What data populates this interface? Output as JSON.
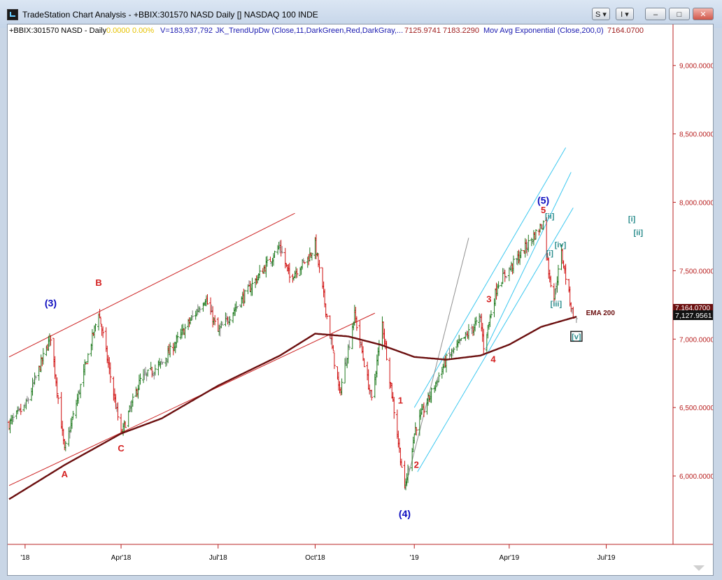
{
  "window": {
    "title": "TradeStation Chart Analysis - +BBIX:301570 NASD Daily [] NASDAQ 100 INDE",
    "buttons": [
      "S",
      "I",
      "–",
      "□",
      "✕"
    ]
  },
  "status": {
    "symbol": "+BBIX:301570 NASD - Daily",
    "change": "0.0000",
    "change_pct": "0.00%",
    "volume": "V=183,937,792",
    "indicator": "JK_TrendUpDw (Close,11,DarkGreen,Red,DarkGray,...",
    "ind_val1": "7125.9741",
    "ind_val2": "7183.2290",
    "ma_label": "Mov Avg Exponential (Close,200,0)",
    "ma_val": "7164.0700"
  },
  "last_price_label": "7,127.9561",
  "ema_price_label": "7,164.0700",
  "colors": {
    "up": "#1f7a1f",
    "down": "#d01010",
    "neutral": "#888888",
    "ema": "#6b0f0f",
    "channel_red": "#cc2222",
    "channel_cyan": "#3cc8f0",
    "wave_blue": "#0b0bbf",
    "wave_red": "#d42020",
    "wave_teal": "#2a8c8c",
    "price_axis": "#b82020"
  },
  "chart_data": {
    "type": "bar",
    "subtype": "ohlc",
    "x_axis": {
      "type": "date",
      "start": "2017-12-18",
      "end": "2019-08-30",
      "ticks": [
        {
          "date": "2018-01-02",
          "label": "'18"
        },
        {
          "date": "2018-04-02",
          "label": "Apr'18"
        },
        {
          "date": "2018-07-02",
          "label": "Jul'18"
        },
        {
          "date": "2018-10-01",
          "label": "Oct'18"
        },
        {
          "date": "2019-01-02",
          "label": "'19"
        },
        {
          "date": "2019-04-01",
          "label": "Apr'19"
        },
        {
          "date": "2019-07-01",
          "label": "Jul'19"
        }
      ]
    },
    "y_axis": {
      "range": [
        5500,
        9300
      ],
      "ticks": [
        6000,
        6500,
        7000,
        7500,
        8000,
        8500,
        9000
      ],
      "tick_labels": [
        "6,000.0000",
        "6,500.0000",
        "7,000.0000",
        "7,500.0000",
        "8,000.0000",
        "8,500.0000",
        "9,000.0000"
      ]
    },
    "price_path": [
      [
        "2017-12-18",
        6380
      ],
      [
        "2018-01-03",
        6520
      ],
      [
        "2018-01-26",
        7020
      ],
      [
        "2018-02-08",
        6180
      ],
      [
        "2018-03-12",
        7200
      ],
      [
        "2018-04-02",
        6300
      ],
      [
        "2018-04-20",
        6700
      ],
      [
        "2018-05-10",
        6820
      ],
      [
        "2018-06-20",
        7300
      ],
      [
        "2018-07-02",
        7050
      ],
      [
        "2018-08-29",
        7680
      ],
      [
        "2018-09-07",
        7450
      ],
      [
        "2018-09-25",
        7600
      ],
      [
        "2018-10-01",
        7690
      ],
      [
        "2018-10-24",
        6600
      ],
      [
        "2018-11-07",
        7180
      ],
      [
        "2018-11-23",
        6550
      ],
      [
        "2018-12-03",
        7120
      ],
      [
        "2018-12-24",
        5900
      ],
      [
        "2019-01-03",
        6350
      ],
      [
        "2019-02-01",
        6850
      ],
      [
        "2019-03-05",
        7150
      ],
      [
        "2019-03-08",
        6950
      ],
      [
        "2019-03-21",
        7400
      ],
      [
        "2019-04-10",
        7600
      ],
      [
        "2019-05-03",
        7850
      ],
      [
        "2019-05-08",
        7500
      ],
      [
        "2019-05-13",
        7300
      ],
      [
        "2019-05-20",
        7630
      ],
      [
        "2019-05-30",
        7200
      ],
      [
        "2019-06-03",
        7128
      ]
    ],
    "ema200": [
      [
        "2017-12-18",
        5830
      ],
      [
        "2018-02-08",
        6080
      ],
      [
        "2018-04-02",
        6310
      ],
      [
        "2018-05-10",
        6420
      ],
      [
        "2018-07-02",
        6660
      ],
      [
        "2018-08-29",
        6880
      ],
      [
        "2018-10-01",
        7040
      ],
      [
        "2018-11-01",
        7020
      ],
      [
        "2018-12-01",
        6960
      ],
      [
        "2019-01-02",
        6870
      ],
      [
        "2019-02-01",
        6850
      ],
      [
        "2019-03-05",
        6880
      ],
      [
        "2019-04-01",
        6960
      ],
      [
        "2019-05-01",
        7090
      ],
      [
        "2019-06-03",
        7164
      ]
    ],
    "series": [
      {
        "name": "Mov Avg Exponential (Close,200,0)",
        "values": [
          7164.07
        ]
      }
    ],
    "trendlines": [
      {
        "color": "red",
        "from": [
          "2017-12-18",
          6870
        ],
        "to": [
          "2018-09-12",
          7920
        ]
      },
      {
        "color": "red",
        "from": [
          "2017-12-18",
          5930
        ],
        "to": [
          "2018-11-26",
          7190
        ]
      },
      {
        "color": "cyan",
        "from": [
          "2019-01-02",
          6500
        ],
        "to": [
          "2019-05-24",
          8400
        ]
      },
      {
        "color": "cyan",
        "from": [
          "2019-01-05",
          6030
        ],
        "to": [
          "2019-05-31",
          7960
        ]
      },
      {
        "color": "cyan",
        "from": [
          "2019-03-10",
          6930
        ],
        "to": [
          "2019-05-29",
          8220
        ]
      },
      {
        "color": "gray",
        "from": [
          "2018-12-24",
          5900
        ],
        "to": [
          "2019-02-22",
          7740
        ]
      }
    ],
    "annotations": [
      {
        "text": "(3)",
        "date": "2018-01-26",
        "price": 7240,
        "style": "blue"
      },
      {
        "text": "B",
        "date": "2018-03-12",
        "price": 7390,
        "style": "red"
      },
      {
        "text": "A",
        "date": "2018-02-08",
        "price": 5990,
        "style": "red"
      },
      {
        "text": "C",
        "date": "2018-04-02",
        "price": 6180,
        "style": "red"
      },
      {
        "text": "(4)",
        "date": "2018-12-24",
        "price": 5700,
        "style": "blue"
      },
      {
        "text": "1",
        "date": "2018-12-20",
        "price": 6530,
        "style": "red"
      },
      {
        "text": "2",
        "date": "2019-01-04",
        "price": 6060,
        "style": "red"
      },
      {
        "text": "3",
        "date": "2019-03-13",
        "price": 7270,
        "style": "red"
      },
      {
        "text": "4",
        "date": "2019-03-17",
        "price": 6830,
        "style": "red"
      },
      {
        "text": "(5)",
        "date": "2019-05-03",
        "price": 7990,
        "style": "blue"
      },
      {
        "text": "5",
        "date": "2019-05-03",
        "price": 7920,
        "style": "red"
      },
      {
        "text": "[ii]",
        "date": "2019-05-09",
        "price": 7880,
        "style": "teal"
      },
      {
        "text": "[i]",
        "date": "2019-05-09",
        "price": 7610,
        "style": "teal"
      },
      {
        "text": "[iv]",
        "date": "2019-05-19",
        "price": 7670,
        "style": "teal"
      },
      {
        "text": "[iii]",
        "date": "2019-05-15",
        "price": 7240,
        "style": "teal"
      },
      {
        "text": "[v]",
        "date": "2019-06-03",
        "price": 7000,
        "style": "teal-box"
      },
      {
        "text": "[i]",
        "date": "2019-07-25",
        "price": 7860,
        "style": "teal"
      },
      {
        "text": "[ii]",
        "date": "2019-07-31",
        "price": 7760,
        "style": "teal"
      },
      {
        "text": "EMA 200",
        "date": "2019-06-12",
        "price": 7175,
        "style": "ema"
      }
    ]
  }
}
